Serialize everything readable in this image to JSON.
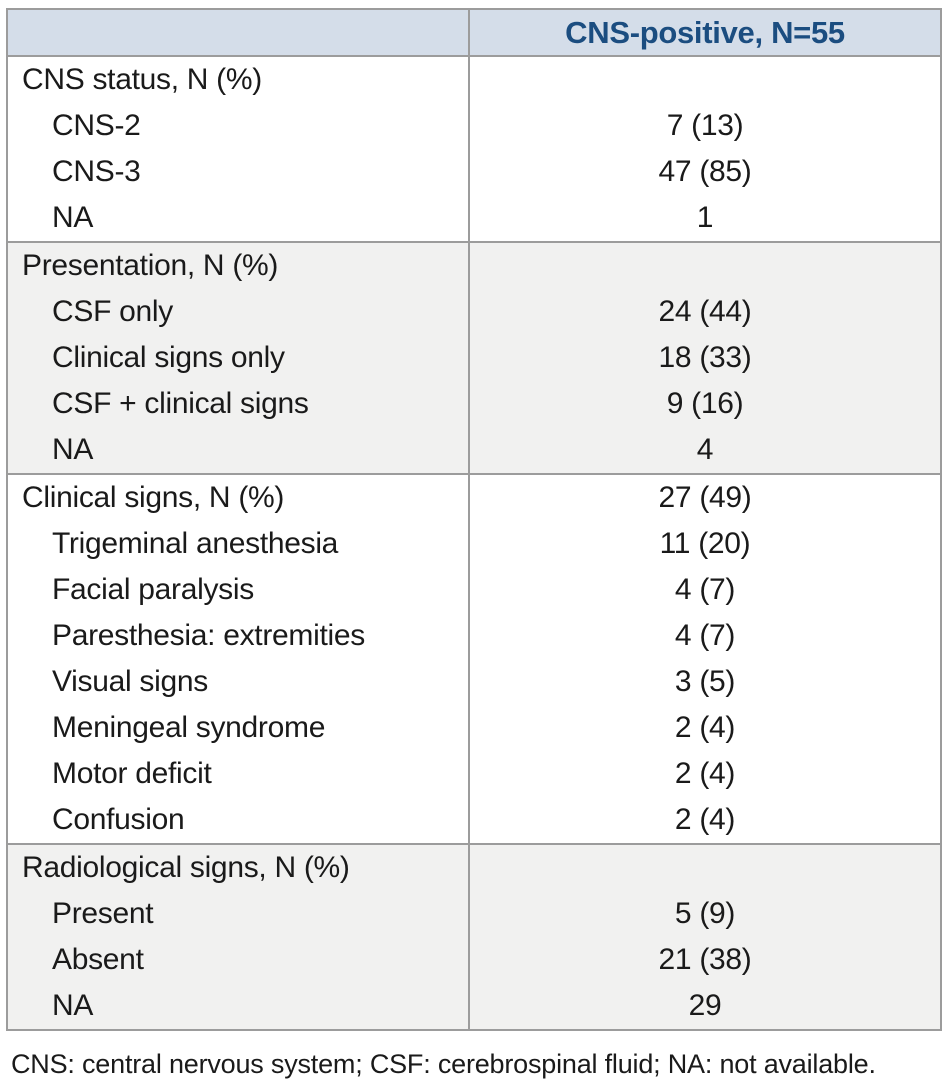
{
  "table": {
    "header": {
      "label_column": "",
      "value_column": "CNS-positive, N=55"
    },
    "sections": [
      {
        "band": "white",
        "rows": [
          {
            "label": "CNS status, N (%)",
            "value": "",
            "indent": false
          },
          {
            "label": "CNS-2",
            "value": "7 (13)",
            "indent": true
          },
          {
            "label": "CNS-3",
            "value": "47 (85)",
            "indent": true
          },
          {
            "label": "NA",
            "value": "1",
            "indent": true
          }
        ]
      },
      {
        "band": "gray",
        "rows": [
          {
            "label": "Presentation, N (%)",
            "value": "",
            "indent": false
          },
          {
            "label": "CSF only",
            "value": "24 (44)",
            "indent": true
          },
          {
            "label": "Clinical signs only",
            "value": "18 (33)",
            "indent": true
          },
          {
            "label": "CSF + clinical signs",
            "value": "9 (16)",
            "indent": true
          },
          {
            "label": "NA",
            "value": "4",
            "indent": true
          }
        ]
      },
      {
        "band": "white",
        "rows": [
          {
            "label": "Clinical signs, N (%)",
            "value": "27 (49)",
            "indent": false
          },
          {
            "label": "Trigeminal anesthesia",
            "value": "11 (20)",
            "indent": true
          },
          {
            "label": "Facial paralysis",
            "value": "4 (7)",
            "indent": true
          },
          {
            "label": "Paresthesia: extremities",
            "value": "4 (7)",
            "indent": true
          },
          {
            "label": "Visual signs",
            "value": "3 (5)",
            "indent": true
          },
          {
            "label": "Meningeal syndrome",
            "value": "2 (4)",
            "indent": true
          },
          {
            "label": "Motor deficit",
            "value": "2 (4)",
            "indent": true
          },
          {
            "label": "Confusion",
            "value": "2 (4)",
            "indent": true
          }
        ]
      },
      {
        "band": "gray",
        "rows": [
          {
            "label": "Radiological signs, N (%)",
            "value": "",
            "indent": false
          },
          {
            "label": "Present",
            "value": "5 (9)",
            "indent": true
          },
          {
            "label": "Absent",
            "value": "21 (38)",
            "indent": true
          },
          {
            "label": "NA",
            "value": "29",
            "indent": true
          }
        ]
      }
    ]
  },
  "footnote": "CNS: central nervous system; CSF: cerebrospinal fluid; NA: not available.",
  "colors": {
    "header_background": "#d4dde9",
    "header_text": "#1b4d80",
    "gray_band": "#f1f1f0",
    "border": "#9c9c9c",
    "body_text": "#1a1a1a"
  }
}
